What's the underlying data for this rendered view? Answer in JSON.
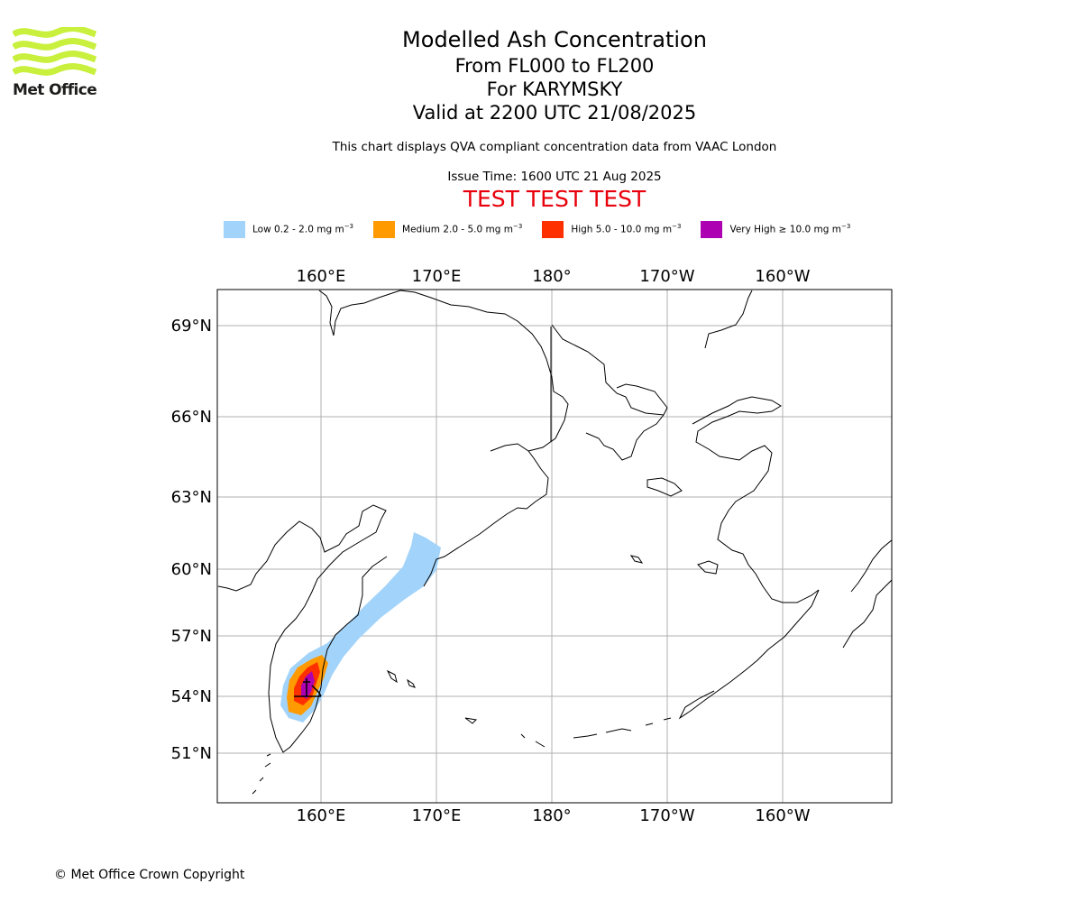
{
  "branding": {
    "logo_text": "Met Office"
  },
  "titles": {
    "main": "Modelled Ash Concentration",
    "levels": "From FL000 to FL200",
    "volcano": "For KARYMSKY",
    "valid": "Valid at 2200 UTC 21/08/2025",
    "note": "This chart displays QVA compliant concentration data from VAAC London",
    "issue": "Issue Time: 1600 UTC 21 Aug 2025",
    "test": "TEST TEST TEST"
  },
  "legend": [
    {
      "label": "Low 0.2 - 2.0 mg m",
      "color": "#a2d3fa"
    },
    {
      "label": "Medium 2.0 - 5.0 mg m",
      "color": "#ff9a00"
    },
    {
      "label": "High 5.0 - 10.0 mg m",
      "color": "#ff3000"
    },
    {
      "label": "Very High ≥ 10.0 mg m",
      "color": "#ad00b2"
    }
  ],
  "legend_unit_exponent": "−3",
  "map": {
    "lon_ticks": [
      {
        "lon": 160,
        "label": "160°E"
      },
      {
        "lon": 170,
        "label": "170°E"
      },
      {
        "lon": 180,
        "label": "180°"
      },
      {
        "lon": 190,
        "label": "170°W"
      },
      {
        "lon": 200,
        "label": "160°W"
      }
    ],
    "lat_ticks": [
      {
        "lat": 69,
        "label": "69°N"
      },
      {
        "lat": 66,
        "label": "66°N"
      },
      {
        "lat": 63,
        "label": "63°N"
      },
      {
        "lat": 60,
        "label": "60°N"
      },
      {
        "lat": 57,
        "label": "57°N"
      },
      {
        "lat": 54,
        "label": "54°N"
      },
      {
        "lat": 51,
        "label": "51°N"
      }
    ],
    "colors": {
      "grid": "#b0b0b0",
      "coast": "#000000"
    }
  },
  "footer": {
    "copyright": "© Met Office Crown Copyright"
  }
}
